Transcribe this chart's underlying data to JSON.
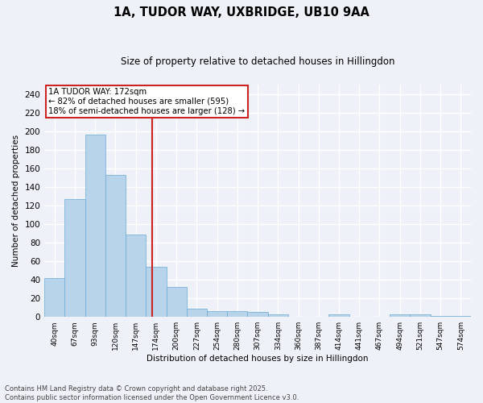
{
  "title_line1": "1A, TUDOR WAY, UXBRIDGE, UB10 9AA",
  "title_line2": "Size of property relative to detached houses in Hillingdon",
  "xlabel": "Distribution of detached houses by size in Hillingdon",
  "ylabel": "Number of detached properties",
  "categories": [
    "40sqm",
    "67sqm",
    "93sqm",
    "120sqm",
    "147sqm",
    "174sqm",
    "200sqm",
    "227sqm",
    "254sqm",
    "280sqm",
    "307sqm",
    "334sqm",
    "360sqm",
    "387sqm",
    "414sqm",
    "441sqm",
    "467sqm",
    "494sqm",
    "521sqm",
    "547sqm",
    "574sqm"
  ],
  "values": [
    42,
    127,
    196,
    153,
    89,
    54,
    32,
    9,
    6,
    6,
    5,
    3,
    0,
    0,
    3,
    0,
    0,
    3,
    3,
    1,
    1
  ],
  "bar_color": "#b8d4ea",
  "bar_edgecolor": "#6aaad4",
  "highlight_color": "#cc2222",
  "property_label": "1A TUDOR WAY: 172sqm",
  "annotation_line1": "← 82% of detached houses are smaller (595)",
  "annotation_line2": "18% of semi-detached houses are larger (128) →",
  "vline_index": 4.82,
  "ylim": [
    0,
    250
  ],
  "yticks": [
    0,
    20,
    40,
    60,
    80,
    100,
    120,
    140,
    160,
    180,
    200,
    220,
    240
  ],
  "background_color": "#eef2f8",
  "footer_line1": "Contains HM Land Registry data © Crown copyright and database right 2025.",
  "footer_line2": "Contains public sector information licensed under the Open Government Licence v3.0."
}
